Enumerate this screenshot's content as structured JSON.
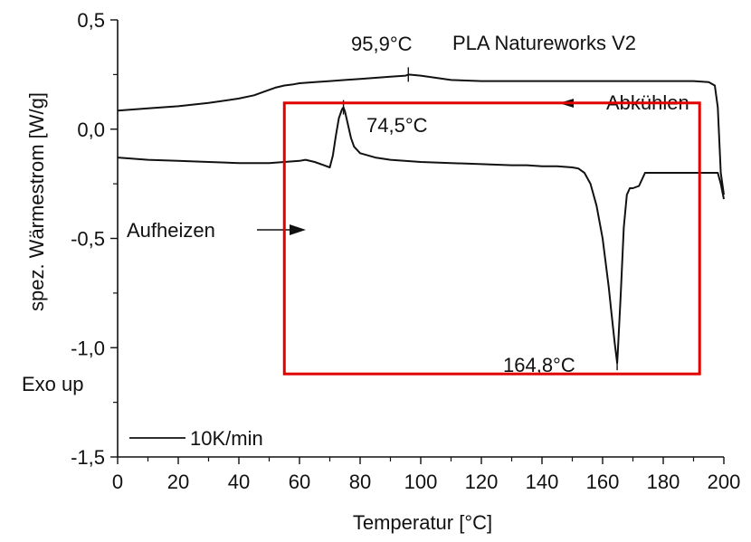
{
  "chart_data": {
    "type": "line",
    "title": "PLA Natureworks V2",
    "xlabel": "Temperatur [°C]",
    "ylabel": "spez. Wärmestrom [W/g]",
    "y_note": "Exo up",
    "xlim": [
      0,
      200
    ],
    "ylim": [
      -1.5,
      0.5
    ],
    "x_ticks": [
      0,
      20,
      40,
      60,
      80,
      100,
      120,
      140,
      160,
      180,
      200
    ],
    "x_tick_labels": [
      "0",
      "20",
      "40",
      "60",
      "80",
      "100",
      "120",
      "140",
      "160",
      "180",
      "200"
    ],
    "y_ticks": [
      0.5,
      0.0,
      -0.5,
      -1.0,
      -1.5
    ],
    "y_tick_labels": [
      "0,5",
      "0,0",
      "-0,5",
      "-1,0",
      "-1,5"
    ],
    "grid": false,
    "legend": {
      "label": "10K/min",
      "placement": "bottom-left"
    },
    "series": [
      {
        "name": "Abkühlen",
        "color": "#111111",
        "x": [
          0,
          10,
          20,
          30,
          40,
          45,
          48,
          50,
          52,
          55,
          58,
          60,
          65,
          70,
          75,
          80,
          85,
          90,
          95,
          96,
          100,
          105,
          110,
          120,
          130,
          140,
          150,
          160,
          170,
          180,
          190,
          195,
          197,
          198,
          199,
          200
        ],
        "y": [
          0.085,
          0.095,
          0.105,
          0.12,
          0.14,
          0.155,
          0.17,
          0.18,
          0.19,
          0.2,
          0.205,
          0.21,
          0.215,
          0.22,
          0.225,
          0.23,
          0.235,
          0.24,
          0.245,
          0.25,
          0.245,
          0.235,
          0.225,
          0.22,
          0.22,
          0.22,
          0.22,
          0.22,
          0.22,
          0.22,
          0.22,
          0.215,
          0.2,
          0.1,
          -0.2,
          -0.3
        ]
      },
      {
        "name": "Aufheizen",
        "color": "#111111",
        "x": [
          0,
          10,
          20,
          30,
          40,
          50,
          55,
          60,
          62,
          65,
          68,
          70,
          71,
          72,
          73,
          74,
          74.5,
          75,
          76,
          77,
          78,
          80,
          85,
          90,
          100,
          110,
          120,
          130,
          135,
          140,
          145,
          150,
          152,
          154,
          156,
          158,
          160,
          162,
          163,
          164,
          164.8,
          165,
          166,
          167,
          168,
          169,
          170,
          172,
          174,
          176,
          180,
          190,
          195,
          198,
          199,
          200
        ],
        "y": [
          -0.13,
          -0.14,
          -0.145,
          -0.15,
          -0.155,
          -0.155,
          -0.15,
          -0.145,
          -0.14,
          -0.15,
          -0.165,
          -0.175,
          -0.12,
          -0.03,
          0.05,
          0.09,
          0.1,
          0.08,
          0.02,
          -0.04,
          -0.08,
          -0.11,
          -0.13,
          -0.14,
          -0.15,
          -0.155,
          -0.16,
          -0.165,
          -0.165,
          -0.17,
          -0.17,
          -0.175,
          -0.18,
          -0.2,
          -0.25,
          -0.35,
          -0.5,
          -0.72,
          -0.85,
          -0.98,
          -1.07,
          -1.02,
          -0.75,
          -0.45,
          -0.3,
          -0.27,
          -0.27,
          -0.26,
          -0.2,
          -0.2,
          -0.2,
          -0.2,
          -0.2,
          -0.2,
          -0.25,
          -0.32
        ]
      }
    ],
    "annotations": [
      {
        "text": "95,9°C",
        "x": 95.9,
        "y": 0.25
      },
      {
        "text": "74,5°C",
        "x": 74.5,
        "y": 0.1
      },
      {
        "text": "164,8°C",
        "x": 164.8,
        "y": -1.07
      },
      {
        "text": "Abkühlen",
        "arrow": "left",
        "series": "Abkühlen"
      },
      {
        "text": "Aufheizen",
        "arrow": "right",
        "series": "Aufheizen"
      }
    ],
    "highlight_box": {
      "x": [
        55,
        192
      ],
      "y": [
        -1.12,
        0.12
      ],
      "color": "#e00000"
    }
  }
}
